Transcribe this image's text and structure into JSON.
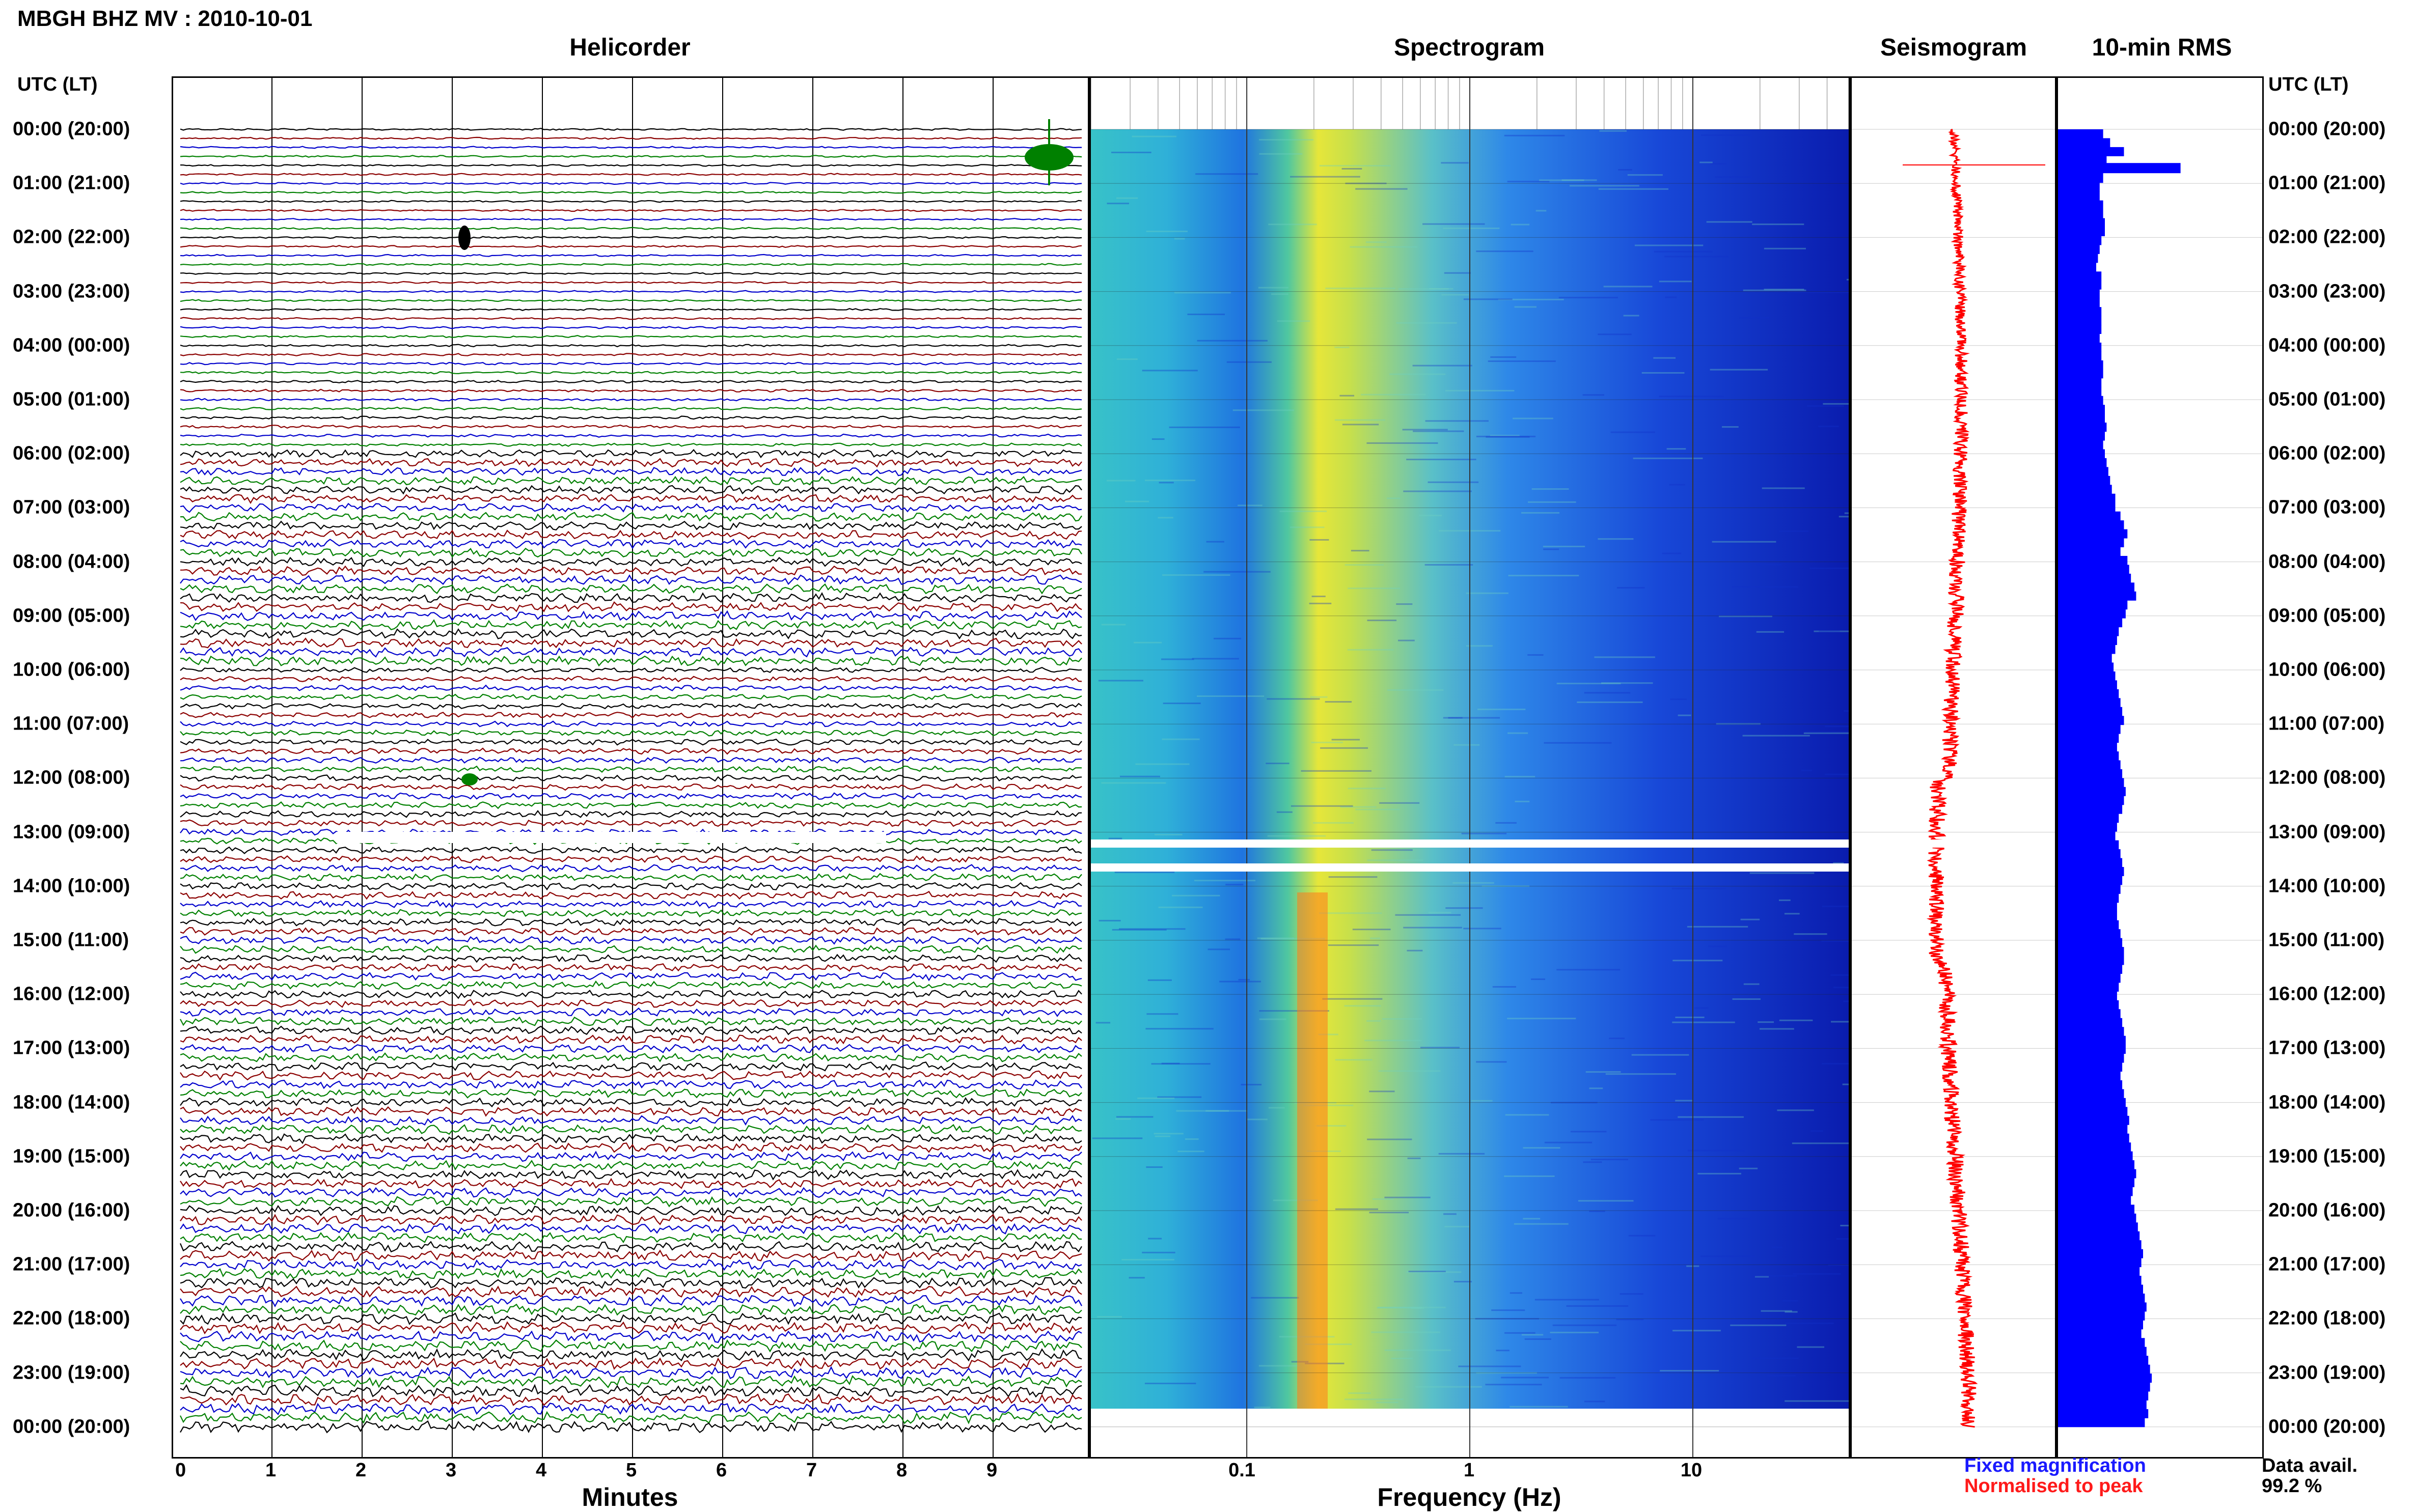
{
  "header": {
    "title": "MBGH BHZ MV : 2010-10-01"
  },
  "panels": {
    "helicorder": "Helicorder",
    "spectrogram": "Spectrogram",
    "seismogram": "Seismogram",
    "rms": "10-min RMS"
  },
  "axis": {
    "time_label": "UTC (LT)",
    "minutes_label": "Minutes",
    "frequency_label": "Frequency (Hz)"
  },
  "legend": {
    "fixed": "Fixed magnification",
    "normalised": "Normalised to peak",
    "fixed_color": "#1a1aff",
    "normalised_color": "#ff1a1a"
  },
  "data_avail": {
    "label": "Data avail.",
    "value": "99.2 %"
  },
  "hours": [
    "00:00 (20:00)",
    "01:00 (21:00)",
    "02:00 (22:00)",
    "03:00 (23:00)",
    "04:00 (00:00)",
    "05:00 (01:00)",
    "06:00 (02:00)",
    "07:00 (03:00)",
    "08:00 (04:00)",
    "09:00 (05:00)",
    "10:00 (06:00)",
    "11:00 (07:00)",
    "12:00 (08:00)",
    "13:00 (09:00)",
    "14:00 (10:00)",
    "15:00 (11:00)",
    "16:00 (12:00)",
    "17:00 (13:00)",
    "18:00 (14:00)",
    "19:00 (15:00)",
    "20:00 (16:00)",
    "21:00 (17:00)",
    "22:00 (18:00)",
    "23:00 (19:00)",
    "00:00 (20:00)"
  ],
  "chart_data": [
    {
      "type": "line",
      "title": "Helicorder",
      "xlabel": "Minutes",
      "x_ticks": [
        "0",
        "1",
        "2",
        "3",
        "4",
        "5",
        "6",
        "7",
        "8",
        "9"
      ],
      "xlim": [
        0,
        10
      ],
      "rows_per_hour": 6,
      "trace_colors": [
        "#000000",
        "#8b0000",
        "#0000cc",
        "#008000"
      ]
    },
    {
      "type": "heatmap",
      "title": "Spectrogram",
      "xlabel": "Frequency (Hz)",
      "x_scale": "log",
      "x_ticks": [
        "0.1",
        "1",
        "10"
      ],
      "xlim": [
        0.02,
        50
      ],
      "dominant_band_hz": 0.25,
      "data_gap_utc": [
        "13:10",
        "13:40"
      ]
    },
    {
      "type": "line",
      "title": "Seismogram",
      "color": "#ff0000"
    },
    {
      "type": "bar",
      "title": "10-min RMS",
      "color": "#0000ff",
      "relative_values": [
        0.26,
        0.3,
        0.38,
        0.28,
        0.26,
        0.26,
        0.24,
        0.24,
        0.26,
        0.26,
        0.27,
        0.27,
        0.25,
        0.24,
        0.23,
        0.22,
        0.25,
        0.25,
        0.24,
        0.24,
        0.25,
        0.25,
        0.25,
        0.24,
        0.25,
        0.25,
        0.26,
        0.26,
        0.25,
        0.25,
        0.26,
        0.27,
        0.27,
        0.28,
        0.27,
        0.26,
        0.27,
        0.28,
        0.29,
        0.3,
        0.31,
        0.33,
        0.33,
        0.36,
        0.38,
        0.4,
        0.38,
        0.36,
        0.4,
        0.41,
        0.42,
        0.44,
        0.45,
        0.4,
        0.39,
        0.37,
        0.35,
        0.34,
        0.33,
        0.31,
        0.32,
        0.33,
        0.34,
        0.35,
        0.36,
        0.37,
        0.38,
        0.36,
        0.35,
        0.34,
        0.35,
        0.36,
        0.37,
        0.38,
        0.39,
        0.38,
        0.37,
        0.35,
        0.34,
        0.33,
        0.35,
        0.36,
        0.37,
        0.38,
        0.37,
        0.36,
        0.35,
        0.34,
        0.34,
        0.35,
        0.36,
        0.37,
        0.38,
        0.38,
        0.37,
        0.36,
        0.35,
        0.34,
        0.35,
        0.36,
        0.37,
        0.38,
        0.39,
        0.39,
        0.38,
        0.37,
        0.36,
        0.37,
        0.38,
        0.39,
        0.4,
        0.41,
        0.4,
        0.41,
        0.42,
        0.43,
        0.44,
        0.45,
        0.44,
        0.43,
        0.42,
        0.44,
        0.45,
        0.46,
        0.47,
        0.48,
        0.49,
        0.48,
        0.47,
        0.48,
        0.49,
        0.5,
        0.51,
        0.5,
        0.49,
        0.48,
        0.5,
        0.51,
        0.52,
        0.53,
        0.54,
        0.53,
        0.52,
        0.51,
        0.52,
        0.5
      ],
      "spike_hour_index": 1,
      "spike_value": 0.6
    }
  ]
}
